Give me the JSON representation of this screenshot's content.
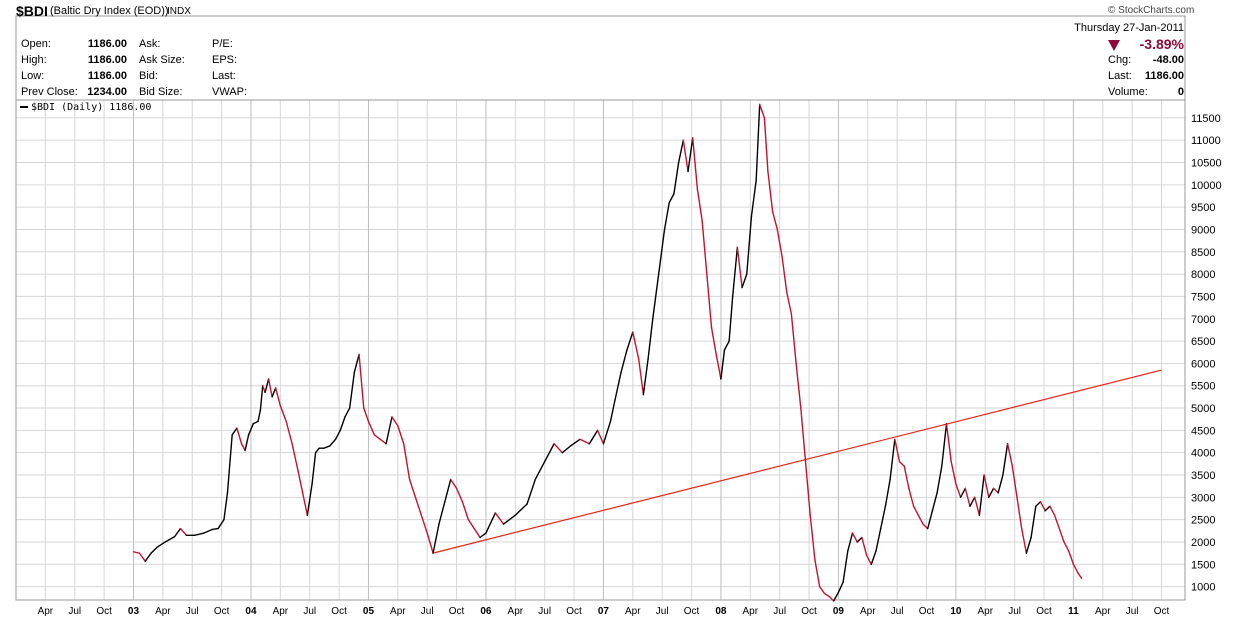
{
  "header": {
    "symbol": "$BDI",
    "description": "(Baltic Dry Index (EOD))",
    "exchange": "INDX",
    "copyright": "© StockCharts.com",
    "date": "Thursday 27-Jan-2011",
    "change_pct": "-3.89%",
    "quote": {
      "open_label": "Open:",
      "open": "1186.00",
      "high_label": "High:",
      "high": "1186.00",
      "low_label": "Low:",
      "low": "1186.00",
      "prev_close_label": "Prev Close:",
      "prev_close": "1234.00",
      "ask_label": "Ask:",
      "ask_size_label": "Ask Size:",
      "bid_label": "Bid:",
      "bid_size_label": "Bid Size:",
      "pe_label": "P/E:",
      "eps_label": "EPS:",
      "last_label": "Last:",
      "vwap_label": "VWAP:",
      "chg_label": "Chg:",
      "chg": "-48.00",
      "last2_label": "Last:",
      "last2": "1186.00",
      "volume_label": "Volume:",
      "volume": "0"
    }
  },
  "legend": {
    "label": "$BDI (Daily) 1186.00"
  },
  "colors": {
    "up": "#000000",
    "down": "#c8102e",
    "trendline": "#e8231c",
    "grid": "#d6d6d6",
    "change_down": "#8b0a3a"
  },
  "chart_data": {
    "type": "line",
    "series_name": "$BDI (Daily)",
    "y_ticks": [
      1000,
      1500,
      2000,
      2500,
      3000,
      3500,
      4000,
      4500,
      5000,
      5500,
      6000,
      6500,
      7000,
      7500,
      8000,
      8500,
      9000,
      9500,
      10000,
      10500,
      11000,
      11500
    ],
    "ylim": [
      700,
      11900
    ],
    "xlim": [
      2002.0,
      2011.95
    ],
    "x_ticks": [
      {
        "t": 2002.25,
        "label": "Apr",
        "year": false
      },
      {
        "t": 2002.5,
        "label": "Jul",
        "year": false
      },
      {
        "t": 2002.75,
        "label": "Oct",
        "year": false
      },
      {
        "t": 2003.0,
        "label": "03",
        "year": true
      },
      {
        "t": 2003.25,
        "label": "Apr",
        "year": false
      },
      {
        "t": 2003.5,
        "label": "Jul",
        "year": false
      },
      {
        "t": 2003.75,
        "label": "Oct",
        "year": false
      },
      {
        "t": 2004.0,
        "label": "04",
        "year": true
      },
      {
        "t": 2004.25,
        "label": "Apr",
        "year": false
      },
      {
        "t": 2004.5,
        "label": "Jul",
        "year": false
      },
      {
        "t": 2004.75,
        "label": "Oct",
        "year": false
      },
      {
        "t": 2005.0,
        "label": "05",
        "year": true
      },
      {
        "t": 2005.25,
        "label": "Apr",
        "year": false
      },
      {
        "t": 2005.5,
        "label": "Jul",
        "year": false
      },
      {
        "t": 2005.75,
        "label": "Oct",
        "year": false
      },
      {
        "t": 2006.0,
        "label": "06",
        "year": true
      },
      {
        "t": 2006.25,
        "label": "Apr",
        "year": false
      },
      {
        "t": 2006.5,
        "label": "Jul",
        "year": false
      },
      {
        "t": 2006.75,
        "label": "Oct",
        "year": false
      },
      {
        "t": 2007.0,
        "label": "07",
        "year": true
      },
      {
        "t": 2007.25,
        "label": "Apr",
        "year": false
      },
      {
        "t": 2007.5,
        "label": "Jul",
        "year": false
      },
      {
        "t": 2007.75,
        "label": "Oct",
        "year": false
      },
      {
        "t": 2008.0,
        "label": "08",
        "year": true
      },
      {
        "t": 2008.25,
        "label": "Apr",
        "year": false
      },
      {
        "t": 2008.5,
        "label": "Jul",
        "year": false
      },
      {
        "t": 2008.75,
        "label": "Oct",
        "year": false
      },
      {
        "t": 2009.0,
        "label": "09",
        "year": true
      },
      {
        "t": 2009.25,
        "label": "Apr",
        "year": false
      },
      {
        "t": 2009.5,
        "label": "Jul",
        "year": false
      },
      {
        "t": 2009.75,
        "label": "Oct",
        "year": false
      },
      {
        "t": 2010.0,
        "label": "10",
        "year": true
      },
      {
        "t": 2010.25,
        "label": "Apr",
        "year": false
      },
      {
        "t": 2010.5,
        "label": "Jul",
        "year": false
      },
      {
        "t": 2010.75,
        "label": "Oct",
        "year": false
      },
      {
        "t": 2011.0,
        "label": "11",
        "year": true
      },
      {
        "t": 2011.25,
        "label": "Apr",
        "year": false
      },
      {
        "t": 2011.5,
        "label": "Jul",
        "year": false
      },
      {
        "t": 2011.75,
        "label": "Oct",
        "year": false
      }
    ],
    "points": [
      [
        2003.0,
        1780
      ],
      [
        2003.05,
        1750
      ],
      [
        2003.1,
        1570
      ],
      [
        2003.15,
        1750
      ],
      [
        2003.2,
        1880
      ],
      [
        2003.27,
        2000
      ],
      [
        2003.35,
        2120
      ],
      [
        2003.4,
        2300
      ],
      [
        2003.45,
        2150
      ],
      [
        2003.52,
        2150
      ],
      [
        2003.6,
        2200
      ],
      [
        2003.67,
        2280
      ],
      [
        2003.72,
        2300
      ],
      [
        2003.77,
        2500
      ],
      [
        2003.8,
        3100
      ],
      [
        2003.84,
        4400
      ],
      [
        2003.88,
        4550
      ],
      [
        2003.92,
        4200
      ],
      [
        2003.95,
        4050
      ],
      [
        2003.98,
        4400
      ],
      [
        2004.02,
        4650
      ],
      [
        2004.06,
        4700
      ],
      [
        2004.08,
        4950
      ],
      [
        2004.1,
        5500
      ],
      [
        2004.12,
        5350
      ],
      [
        2004.15,
        5650
      ],
      [
        2004.18,
        5250
      ],
      [
        2004.21,
        5450
      ],
      [
        2004.25,
        5050
      ],
      [
        2004.3,
        4700
      ],
      [
        2004.35,
        4200
      ],
      [
        2004.4,
        3600
      ],
      [
        2004.44,
        3100
      ],
      [
        2004.48,
        2600
      ],
      [
        2004.52,
        3300
      ],
      [
        2004.55,
        4000
      ],
      [
        2004.58,
        4100
      ],
      [
        2004.62,
        4100
      ],
      [
        2004.67,
        4150
      ],
      [
        2004.72,
        4300
      ],
      [
        2004.76,
        4500
      ],
      [
        2004.8,
        4800
      ],
      [
        2004.84,
        5000
      ],
      [
        2004.88,
        5800
      ],
      [
        2004.92,
        6200
      ],
      [
        2004.96,
        5000
      ],
      [
        2005.0,
        4700
      ],
      [
        2005.05,
        4400
      ],
      [
        2005.1,
        4300
      ],
      [
        2005.15,
        4200
      ],
      [
        2005.2,
        4800
      ],
      [
        2005.25,
        4600
      ],
      [
        2005.3,
        4200
      ],
      [
        2005.35,
        3400
      ],
      [
        2005.4,
        3000
      ],
      [
        2005.45,
        2600
      ],
      [
        2005.5,
        2200
      ],
      [
        2005.55,
        1750
      ],
      [
        2005.6,
        2400
      ],
      [
        2005.65,
        2900
      ],
      [
        2005.7,
        3400
      ],
      [
        2005.75,
        3200
      ],
      [
        2005.8,
        2900
      ],
      [
        2005.85,
        2500
      ],
      [
        2005.9,
        2300
      ],
      [
        2005.95,
        2100
      ],
      [
        2006.0,
        2200
      ],
      [
        2006.08,
        2650
      ],
      [
        2006.15,
        2400
      ],
      [
        2006.25,
        2600
      ],
      [
        2006.35,
        2850
      ],
      [
        2006.42,
        3400
      ],
      [
        2006.5,
        3800
      ],
      [
        2006.58,
        4200
      ],
      [
        2006.65,
        4000
      ],
      [
        2006.72,
        4150
      ],
      [
        2006.8,
        4300
      ],
      [
        2006.88,
        4200
      ],
      [
        2006.95,
        4500
      ],
      [
        2007.0,
        4200
      ],
      [
        2007.06,
        4700
      ],
      [
        2007.1,
        5200
      ],
      [
        2007.15,
        5800
      ],
      [
        2007.2,
        6300
      ],
      [
        2007.25,
        6700
      ],
      [
        2007.3,
        6100
      ],
      [
        2007.34,
        5300
      ],
      [
        2007.38,
        6100
      ],
      [
        2007.42,
        7000
      ],
      [
        2007.47,
        8000
      ],
      [
        2007.52,
        9000
      ],
      [
        2007.56,
        9600
      ],
      [
        2007.6,
        9800
      ],
      [
        2007.64,
        10500
      ],
      [
        2007.68,
        11000
      ],
      [
        2007.72,
        10300
      ],
      [
        2007.76,
        11050
      ],
      [
        2007.8,
        9900
      ],
      [
        2007.84,
        9200
      ],
      [
        2007.88,
        8000
      ],
      [
        2007.92,
        6800
      ],
      [
        2007.96,
        6200
      ],
      [
        2008.0,
        5650
      ],
      [
        2008.03,
        6300
      ],
      [
        2008.07,
        6500
      ],
      [
        2008.1,
        7500
      ],
      [
        2008.14,
        8600
      ],
      [
        2008.18,
        7700
      ],
      [
        2008.22,
        8000
      ],
      [
        2008.26,
        9300
      ],
      [
        2008.3,
        10100
      ],
      [
        2008.33,
        11800
      ],
      [
        2008.37,
        11500
      ],
      [
        2008.4,
        10300
      ],
      [
        2008.44,
        9400
      ],
      [
        2008.48,
        9000
      ],
      [
        2008.52,
        8400
      ],
      [
        2008.56,
        7600
      ],
      [
        2008.6,
        7100
      ],
      [
        2008.64,
        6000
      ],
      [
        2008.68,
        5000
      ],
      [
        2008.72,
        3800
      ],
      [
        2008.76,
        2600
      ],
      [
        2008.8,
        1600
      ],
      [
        2008.84,
        1000
      ],
      [
        2008.88,
        850
      ],
      [
        2008.92,
        780
      ],
      [
        2008.96,
        680
      ],
      [
        2009.0,
        870
      ],
      [
        2009.04,
        1100
      ],
      [
        2009.08,
        1800
      ],
      [
        2009.12,
        2200
      ],
      [
        2009.16,
        2000
      ],
      [
        2009.2,
        2100
      ],
      [
        2009.24,
        1700
      ],
      [
        2009.28,
        1500
      ],
      [
        2009.32,
        1800
      ],
      [
        2009.36,
        2300
      ],
      [
        2009.4,
        2800
      ],
      [
        2009.44,
        3400
      ],
      [
        2009.48,
        4300
      ],
      [
        2009.52,
        3800
      ],
      [
        2009.56,
        3700
      ],
      [
        2009.6,
        3200
      ],
      [
        2009.64,
        2800
      ],
      [
        2009.68,
        2600
      ],
      [
        2009.72,
        2400
      ],
      [
        2009.76,
        2300
      ],
      [
        2009.8,
        2700
      ],
      [
        2009.84,
        3100
      ],
      [
        2009.88,
        3700
      ],
      [
        2009.92,
        4650
      ],
      [
        2009.96,
        3800
      ],
      [
        2010.0,
        3300
      ],
      [
        2010.04,
        3000
      ],
      [
        2010.08,
        3200
      ],
      [
        2010.12,
        2800
      ],
      [
        2010.16,
        3000
      ],
      [
        2010.2,
        2600
      ],
      [
        2010.24,
        3500
      ],
      [
        2010.28,
        3000
      ],
      [
        2010.32,
        3200
      ],
      [
        2010.36,
        3100
      ],
      [
        2010.4,
        3500
      ],
      [
        2010.44,
        4200
      ],
      [
        2010.48,
        3700
      ],
      [
        2010.52,
        3000
      ],
      [
        2010.56,
        2300
      ],
      [
        2010.6,
        1750
      ],
      [
        2010.64,
        2100
      ],
      [
        2010.68,
        2800
      ],
      [
        2010.72,
        2900
      ],
      [
        2010.76,
        2700
      ],
      [
        2010.8,
        2800
      ],
      [
        2010.84,
        2600
      ],
      [
        2010.88,
        2300
      ],
      [
        2010.92,
        2000
      ],
      [
        2010.96,
        1800
      ],
      [
        2011.0,
        1500
      ],
      [
        2011.04,
        1300
      ],
      [
        2011.07,
        1186
      ]
    ],
    "trendline": [
      [
        2005.55,
        1750
      ],
      [
        2011.75,
        5850
      ]
    ]
  }
}
